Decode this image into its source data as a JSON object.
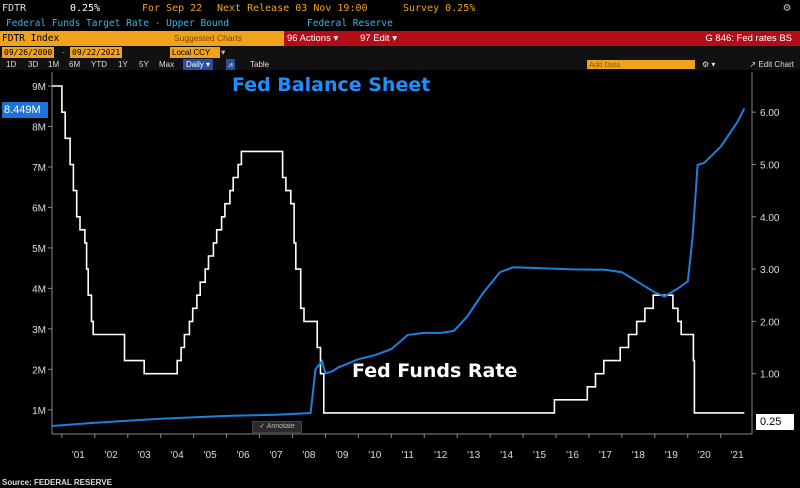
{
  "header": {
    "ticker": "FDTR",
    "value": "0.25%",
    "for_label": "For Sep 22",
    "next_release": "Next Release 03 Nov 19:00",
    "survey": "Survey 0.25%",
    "subtitle": "Federal Funds Target Rate - Upper Bound",
    "source_agency": "Federal Reserve",
    "gear_icon": "gear-icon"
  },
  "command_bar": {
    "index": "FDTR Index",
    "suggested": "Suggested Charts",
    "actions": "96 Actions ▾",
    "edit": "97 Edit ▾",
    "graph_title": "G 846: Fed rates BS"
  },
  "date_row": {
    "start": "09/26/2000",
    "separator": "-",
    "end": "09/22/2021",
    "currency": "Local CCY",
    "currency_arrow": "▾"
  },
  "period_row": {
    "periods": [
      "1D",
      "3D",
      "1M",
      "6M",
      "YTD",
      "1Y",
      "5Y",
      "Max"
    ],
    "frequency": "Daily ▾",
    "table_label": "Table",
    "add_data": "Add Data",
    "edit_chart": "↗ Edit Chart",
    "settings_icon": "settings-icon"
  },
  "chart": {
    "annotate_label": "Annotate",
    "left_badge": "8.449M",
    "right_badge": "0.25",
    "source": "Source: FEDERAL RESERVE"
  },
  "chart_data": {
    "type": "line",
    "title": "Fed Balance Sheet",
    "annotations": [
      "Fed Balance Sheet",
      "Fed Funds Rate"
    ],
    "x_ticks": [
      "'01",
      "'02",
      "'03",
      "'04",
      "'05",
      "'06",
      "'07",
      "'08",
      "'09",
      "'10",
      "'11",
      "'12",
      "'13",
      "'14",
      "'15",
      "'16",
      "'17",
      "'18",
      "'19",
      "'20",
      "'21"
    ],
    "left_axis": {
      "ticks": [
        "1M",
        "2M",
        "3M",
        "4M",
        "5M",
        "6M",
        "7M",
        "8M",
        "9M"
      ],
      "range": [
        0.6,
        9.0
      ],
      "unit": "M"
    },
    "right_axis": {
      "ticks": [
        "1.00",
        "2.00",
        "3.00",
        "4.00",
        "5.00",
        "6.00"
      ],
      "range": [
        0.0,
        6.5
      ]
    },
    "series": [
      {
        "name": "Fed Balance Sheet",
        "color": "#1e7fe0",
        "axis": "left",
        "points": [
          [
            2000.7,
            0.6
          ],
          [
            2002.0,
            0.68
          ],
          [
            2004.0,
            0.78
          ],
          [
            2006.0,
            0.85
          ],
          [
            2007.5,
            0.88
          ],
          [
            2008.55,
            0.92
          ],
          [
            2008.7,
            2.0
          ],
          [
            2008.9,
            2.2
          ],
          [
            2009.0,
            1.9
          ],
          [
            2009.2,
            1.95
          ],
          [
            2009.4,
            2.05
          ],
          [
            2009.7,
            2.15
          ],
          [
            2010.0,
            2.25
          ],
          [
            2010.5,
            2.35
          ],
          [
            2011.0,
            2.5
          ],
          [
            2011.5,
            2.85
          ],
          [
            2012.0,
            2.9
          ],
          [
            2012.5,
            2.9
          ],
          [
            2012.9,
            2.95
          ],
          [
            2013.3,
            3.3
          ],
          [
            2013.8,
            3.9
          ],
          [
            2014.3,
            4.4
          ],
          [
            2014.7,
            4.52
          ],
          [
            2015.5,
            4.5
          ],
          [
            2016.5,
            4.47
          ],
          [
            2017.5,
            4.46
          ],
          [
            2018.0,
            4.4
          ],
          [
            2018.5,
            4.15
          ],
          [
            2019.0,
            3.9
          ],
          [
            2019.3,
            3.8
          ],
          [
            2019.7,
            4.0
          ],
          [
            2020.0,
            4.17
          ],
          [
            2020.15,
            5.3
          ],
          [
            2020.3,
            7.05
          ],
          [
            2020.5,
            7.1
          ],
          [
            2021.0,
            7.5
          ],
          [
            2021.5,
            8.1
          ],
          [
            2021.72,
            8.449
          ]
        ]
      },
      {
        "name": "Fed Funds Rate",
        "color": "#ffffff",
        "axis": "right",
        "steps": [
          [
            2000.7,
            6.5
          ],
          [
            2001.0,
            6.0
          ],
          [
            2001.1,
            5.5
          ],
          [
            2001.25,
            5.0
          ],
          [
            2001.35,
            4.5
          ],
          [
            2001.45,
            4.0
          ],
          [
            2001.55,
            3.75
          ],
          [
            2001.7,
            3.5
          ],
          [
            2001.75,
            3.0
          ],
          [
            2001.8,
            2.5
          ],
          [
            2001.9,
            2.0
          ],
          [
            2001.95,
            1.75
          ],
          [
            2002.9,
            1.25
          ],
          [
            2003.5,
            1.0
          ],
          [
            2004.5,
            1.25
          ],
          [
            2004.62,
            1.5
          ],
          [
            2004.72,
            1.75
          ],
          [
            2004.87,
            2.0
          ],
          [
            2004.97,
            2.25
          ],
          [
            2005.1,
            2.5
          ],
          [
            2005.2,
            2.75
          ],
          [
            2005.35,
            3.0
          ],
          [
            2005.45,
            3.25
          ],
          [
            2005.6,
            3.5
          ],
          [
            2005.7,
            3.75
          ],
          [
            2005.85,
            4.0
          ],
          [
            2005.95,
            4.25
          ],
          [
            2006.1,
            4.5
          ],
          [
            2006.2,
            4.75
          ],
          [
            2006.35,
            5.0
          ],
          [
            2006.45,
            5.25
          ],
          [
            2007.7,
            4.75
          ],
          [
            2007.8,
            4.5
          ],
          [
            2007.95,
            4.25
          ],
          [
            2008.05,
            3.5
          ],
          [
            2008.1,
            3.0
          ],
          [
            2008.25,
            2.25
          ],
          [
            2008.35,
            2.0
          ],
          [
            2008.75,
            1.5
          ],
          [
            2008.85,
            1.0
          ],
          [
            2008.95,
            0.25
          ],
          [
            2015.95,
            0.5
          ],
          [
            2016.95,
            0.75
          ],
          [
            2017.2,
            1.0
          ],
          [
            2017.45,
            1.25
          ],
          [
            2017.95,
            1.5
          ],
          [
            2018.2,
            1.75
          ],
          [
            2018.45,
            2.0
          ],
          [
            2018.7,
            2.25
          ],
          [
            2018.95,
            2.5
          ],
          [
            2019.55,
            2.25
          ],
          [
            2019.7,
            2.0
          ],
          [
            2019.8,
            1.75
          ],
          [
            2020.17,
            1.25
          ],
          [
            2020.2,
            0.25
          ],
          [
            2021.72,
            0.25
          ]
        ]
      }
    ]
  }
}
